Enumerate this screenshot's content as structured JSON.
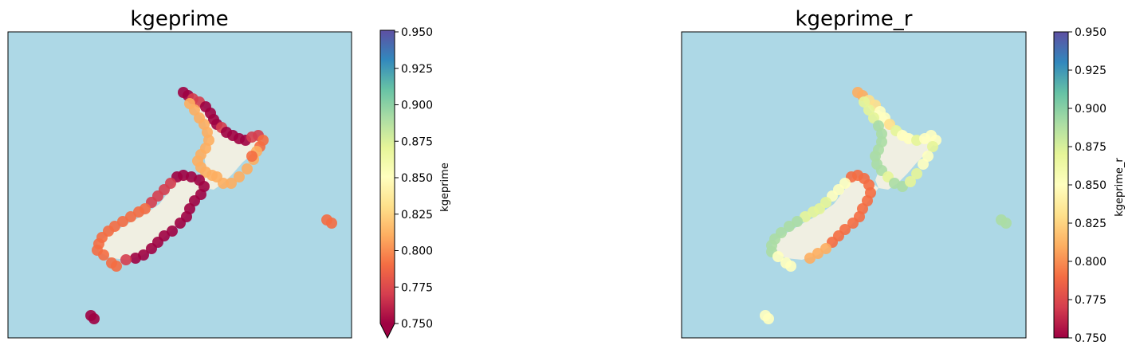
{
  "panels": [
    {
      "title": "kgeprime",
      "colorbar_label": "kgeprime",
      "colormap": "Spectral",
      "colorbar_extend": "min",
      "dominant_colors": {
        "north_island": "mixed red/orange",
        "south_island": "dark red east, orange west"
      }
    },
    {
      "title": "kgeprime_r",
      "colorbar_label": "kgeprime_r",
      "colormap": "Spectral",
      "colorbar_extend": "none",
      "dominant_colors": {
        "north_island": "pale yellow / light green",
        "south_island": "light green west, orange east"
      }
    }
  ],
  "colorbar": {
    "min": 0.75,
    "max": 0.95,
    "ticks": [
      "0.950",
      "0.925",
      "0.900",
      "0.875",
      "0.850",
      "0.825",
      "0.800",
      "0.775",
      "0.750"
    ]
  },
  "colors": {
    "ocean": "#add8e6",
    "land": "#f0efe2",
    "spectral_stops": [
      "#9e0142",
      "#d53e4f",
      "#f46d43",
      "#fdae61",
      "#fee08b",
      "#ffffbf",
      "#e6f598",
      "#abdda4",
      "#66c2a5",
      "#3288bd",
      "#5e4fa2"
    ]
  }
}
